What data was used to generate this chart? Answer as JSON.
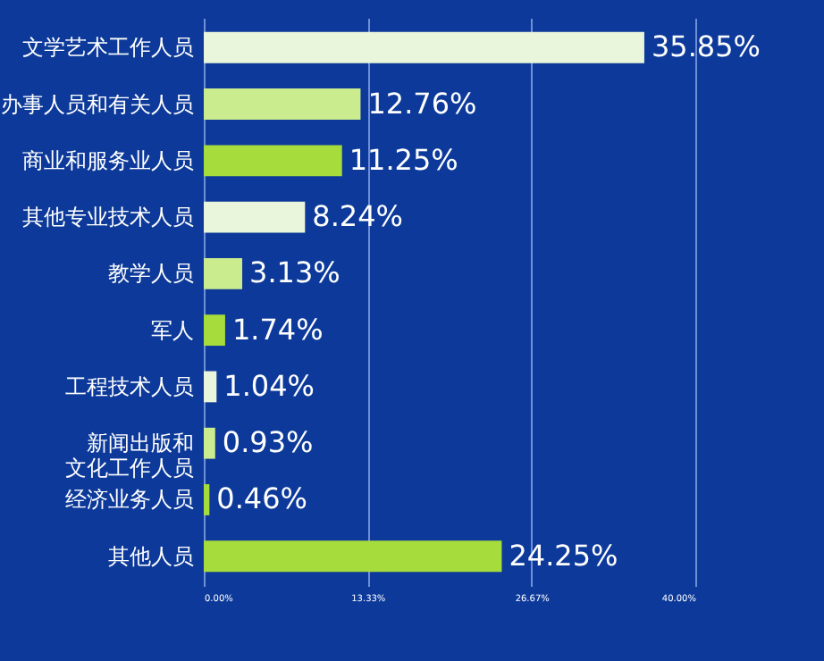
{
  "chart_data": {
    "type": "bar",
    "orientation": "horizontal",
    "categories": [
      "文学艺术工作人员",
      "办事人员和有关人员",
      "商业和服务业人员",
      "其他专业技术人员",
      "教学人员",
      "军人",
      "工程技术人员",
      "新闻出版和文化工作人员",
      "经济业务人员",
      "其他人员"
    ],
    "values": [
      35.85,
      12.76,
      11.25,
      8.24,
      3.13,
      1.74,
      1.04,
      0.93,
      0.46,
      24.25
    ],
    "value_labels": [
      "35.85%",
      "12.76%",
      "11.25%",
      "8.24%",
      "3.13%",
      "1.74%",
      "1.04%",
      "0.93%",
      "0.46%",
      "24.25%"
    ],
    "colors": [
      "#eaf6dc",
      "#cbec8e",
      "#a6dc3c",
      "#eaf6dc",
      "#cbec8e",
      "#a6dc3c",
      "#eaf6dc",
      "#cbec8e",
      "#a6dc3c",
      "#a6dc3c"
    ],
    "xlim": [
      0,
      40
    ],
    "xticks": [
      {
        "value": 0,
        "label": "0.00%"
      },
      {
        "value": 13.33,
        "label": "13.33%"
      },
      {
        "value": 26.67,
        "label": "26.67%"
      },
      {
        "value": 40,
        "label": "40.00%"
      }
    ],
    "grid": "x"
  }
}
